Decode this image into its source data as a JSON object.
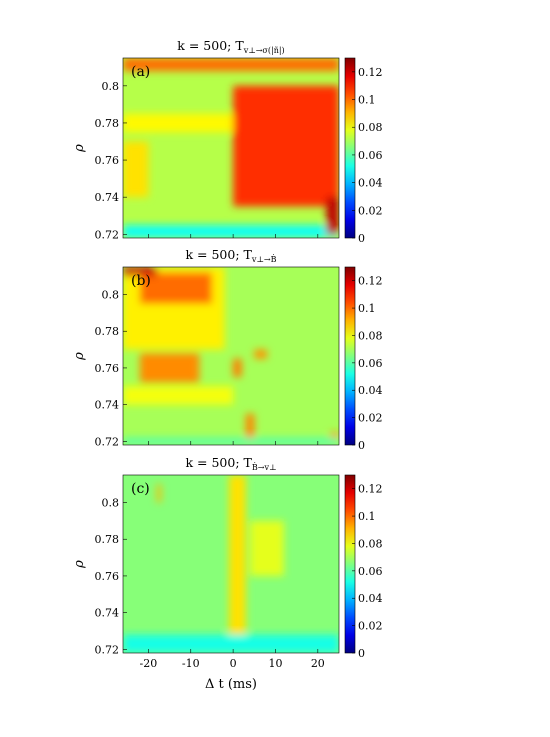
{
  "figure": {
    "xlabel": "Δ t (ms)",
    "ylabel": "ρ",
    "colorbar_ticks": [
      "0",
      "0.02",
      "0.04",
      "0.06",
      "0.08",
      "0.1",
      "0.12"
    ]
  },
  "chart_data": [
    {
      "type": "heatmap",
      "panel_label": "(a)",
      "title_main": "k = 500;  T",
      "title_sub": "v⊥→σ(|ñ|)",
      "x_range": [
        -26,
        25
      ],
      "y_range": [
        0.718,
        0.815
      ],
      "y_ticks": [
        0.72,
        0.74,
        0.76,
        0.78,
        0.8
      ],
      "x_ticks": [
        -20,
        -10,
        0,
        10,
        20
      ],
      "color_range": [
        0,
        0.13
      ],
      "colormap": "jet",
      "baseline_value": 0.072,
      "features": [
        {
          "x": [
            0,
            25
          ],
          "y": [
            0.735,
            0.8
          ],
          "value": 0.108
        },
        {
          "x": [
            -26,
            -20
          ],
          "y": [
            0.74,
            0.77
          ],
          "value": 0.085
        },
        {
          "x": [
            -26,
            0
          ],
          "y": [
            0.775,
            0.785
          ],
          "value": 0.082
        },
        {
          "x": [
            -26,
            25
          ],
          "y": [
            0.718,
            0.725
          ],
          "value": 0.05
        },
        {
          "x": [
            -26,
            25
          ],
          "y": [
            0.808,
            0.815
          ],
          "value": 0.1
        },
        {
          "x": [
            22,
            25
          ],
          "y": [
            0.72,
            0.74
          ],
          "value": 0.122
        }
      ]
    },
    {
      "type": "heatmap",
      "panel_label": "(b)",
      "title_main": "k = 500;  T",
      "title_sub": "v⊥→Ḃ",
      "x_range": [
        -26,
        25
      ],
      "y_range": [
        0.718,
        0.815
      ],
      "y_ticks": [
        0.72,
        0.74,
        0.76,
        0.78,
        0.8
      ],
      "x_ticks": [
        -20,
        -10,
        0,
        10,
        20
      ],
      "color_range": [
        0,
        0.13
      ],
      "colormap": "jet",
      "baseline_value": 0.07,
      "features": [
        {
          "x": [
            -26,
            -2
          ],
          "y": [
            0.77,
            0.815
          ],
          "value": 0.083
        },
        {
          "x": [
            -22,
            -5
          ],
          "y": [
            0.795,
            0.812
          ],
          "value": 0.1
        },
        {
          "x": [
            -22,
            -8
          ],
          "y": [
            0.752,
            0.768
          ],
          "value": 0.096
        },
        {
          "x": [
            -26,
            0
          ],
          "y": [
            0.74,
            0.75
          ],
          "value": 0.08
        },
        {
          "x": [
            0,
            2
          ],
          "y": [
            0.755,
            0.765
          ],
          "value": 0.098
        },
        {
          "x": [
            5,
            8
          ],
          "y": [
            0.765,
            0.77
          ],
          "value": 0.095
        },
        {
          "x": [
            3,
            5
          ],
          "y": [
            0.72,
            0.735
          ],
          "value": 0.097
        },
        {
          "x": [
            23,
            25
          ],
          "y": [
            0.72,
            0.725
          ],
          "value": 0.095
        },
        {
          "x": [
            -26,
            -18
          ],
          "y": [
            0.81,
            0.815
          ],
          "value": 0.12
        },
        {
          "x": [
            -26,
            25
          ],
          "y": [
            0.718,
            0.722
          ],
          "value": 0.06
        }
      ]
    },
    {
      "type": "heatmap",
      "panel_label": "(c)",
      "title_main": "k = 500;  T",
      "title_sub": "Ḃ→v⊥",
      "x_range": [
        -26,
        25
      ],
      "y_range": [
        0.718,
        0.815
      ],
      "y_ticks": [
        0.72,
        0.74,
        0.76,
        0.78,
        0.8
      ],
      "x_ticks": [
        -20,
        -10,
        0,
        10,
        20
      ],
      "color_range": [
        0,
        0.13
      ],
      "colormap": "jet",
      "baseline_value": 0.066,
      "features": [
        {
          "x": [
            0,
            2
          ],
          "y": [
            0.795,
            0.81
          ],
          "value": 0.11
        },
        {
          "x": [
            0,
            2
          ],
          "y": [
            0.76,
            0.775
          ],
          "value": 0.105
        },
        {
          "x": [
            -1,
            3
          ],
          "y": [
            0.725,
            0.815
          ],
          "value": 0.085
        },
        {
          "x": [
            -18,
            -17
          ],
          "y": [
            0.8,
            0.81
          ],
          "value": 0.09
        },
        {
          "x": [
            4,
            12
          ],
          "y": [
            0.76,
            0.79
          ],
          "value": 0.078
        },
        {
          "x": [
            -26,
            25
          ],
          "y": [
            0.718,
            0.728
          ],
          "value": 0.052
        }
      ]
    }
  ]
}
